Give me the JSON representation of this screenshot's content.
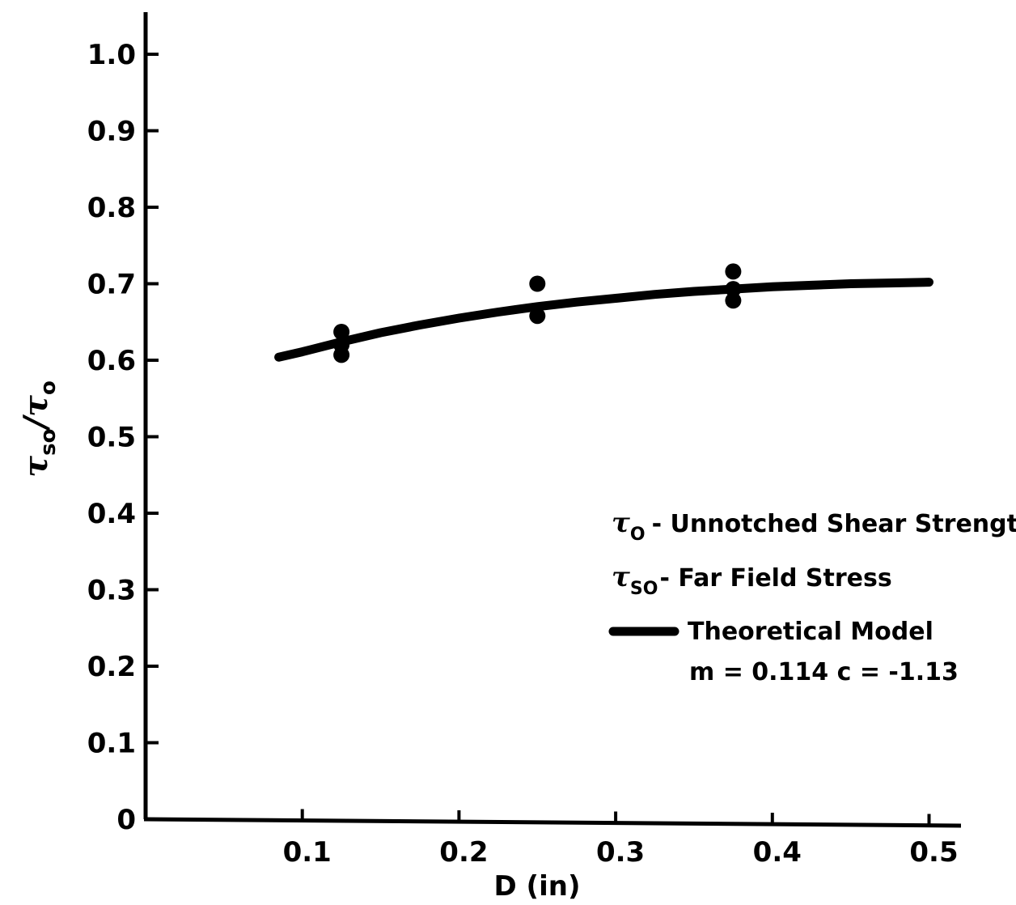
{
  "chart_data": {
    "type": "scatter",
    "xlabel": "D  (in)",
    "ylabel": {
      "symbol": "τ",
      "num_sub": "so",
      "slash": "/",
      "den_sub": "o"
    },
    "xlim": [
      0,
      0.53
    ],
    "ylim": [
      0,
      1.05
    ],
    "x_ticks": [
      0.1,
      0.2,
      0.3,
      0.4,
      0.5
    ],
    "x_tick_labels": [
      "0.1",
      "0.2",
      "0.3",
      "0.4",
      "0.5"
    ],
    "y_ticks": [
      0,
      0.1,
      0.2,
      0.3,
      0.4,
      0.5,
      0.6,
      0.7,
      0.8,
      0.9,
      1.0
    ],
    "y_tick_labels": [
      "0",
      "0.1",
      "0.2",
      "0.3",
      "0.4",
      "0.5",
      "0.6",
      "0.7",
      "0.8",
      "0.9",
      "1.0"
    ],
    "grid": false,
    "legend_position": "right",
    "series": [
      {
        "kind": "points",
        "x": [
          0.125,
          0.125,
          0.125,
          0.25,
          0.25,
          0.375,
          0.375,
          0.375
        ],
        "y": [
          0.637,
          0.62,
          0.607,
          0.7,
          0.658,
          0.716,
          0.693,
          0.678
        ]
      },
      {
        "kind": "line",
        "name": "Theoretical Model",
        "x": [
          0.085,
          0.1,
          0.125,
          0.15,
          0.175,
          0.2,
          0.225,
          0.25,
          0.275,
          0.3,
          0.325,
          0.35,
          0.375,
          0.4,
          0.425,
          0.45,
          0.475,
          0.5
        ],
        "y": [
          0.604,
          0.611,
          0.624,
          0.636,
          0.646,
          0.655,
          0.663,
          0.67,
          0.676,
          0.681,
          0.686,
          0.69,
          0.693,
          0.696,
          0.698,
          0.7,
          0.701,
          0.702
        ]
      }
    ],
    "legend": {
      "tau0_symbol": "τ",
      "tau0_sub": "O",
      "tau0_text": "- Unnotched Shear Strength",
      "tauso_symbol": "τ",
      "tauso_sub": "SO",
      "tauso_text": "- Far Field Stress",
      "model_label": "Theoretical Model",
      "model_params": "m = 0.114   c = -1.13"
    }
  }
}
